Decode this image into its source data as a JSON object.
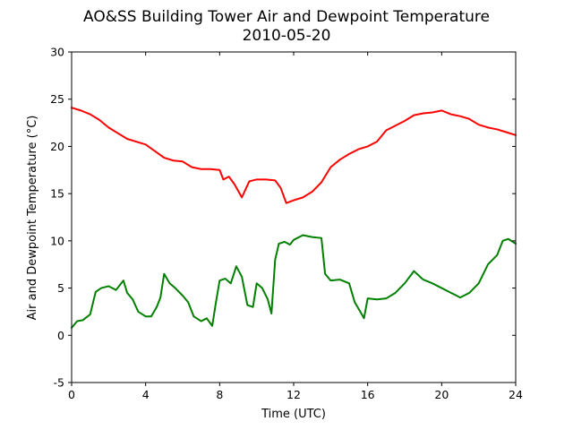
{
  "chart_data": {
    "type": "line",
    "title": "AO&SS Building Tower Air and Dewpoint Temperature",
    "subtitle": "2010-05-20",
    "xlabel": "Time (UTC)",
    "ylabel": "Air and Dewpoint Temperature (°C)",
    "xlim": [
      0,
      24
    ],
    "ylim": [
      -5,
      30
    ],
    "xticks": [
      0,
      4,
      8,
      12,
      16,
      20,
      24
    ],
    "yticks": [
      -5,
      0,
      5,
      10,
      15,
      20,
      25,
      30
    ],
    "grid": false,
    "legend": "none",
    "series": [
      {
        "color": "#ff0000",
        "x": [
          0,
          0.5,
          1,
          1.5,
          2,
          2.5,
          3,
          3.5,
          4,
          4.5,
          5,
          5.5,
          6,
          6.5,
          7,
          7.5,
          8,
          8.2,
          8.5,
          8.8,
          9.2,
          9.6,
          10,
          10.5,
          11,
          11.3,
          11.6,
          12,
          12.5,
          13,
          13.5,
          14,
          14.5,
          15,
          15.5,
          16,
          16.5,
          17,
          17.5,
          18,
          18.5,
          19,
          19.5,
          20,
          20.5,
          21,
          21.5,
          22,
          22.5,
          23,
          23.5,
          24
        ],
        "y": [
          24.1,
          23.8,
          23.4,
          22.8,
          22.0,
          21.4,
          20.8,
          20.5,
          20.2,
          19.5,
          18.8,
          18.5,
          18.4,
          17.8,
          17.6,
          17.6,
          17.5,
          16.5,
          16.8,
          16.0,
          14.6,
          16.3,
          16.5,
          16.5,
          16.4,
          15.6,
          14.0,
          14.3,
          14.6,
          15.2,
          16.2,
          17.8,
          18.6,
          19.2,
          19.7,
          20.0,
          20.5,
          21.7,
          22.2,
          22.7,
          23.3,
          23.5,
          23.6,
          23.8,
          23.4,
          23.2,
          22.9,
          22.3,
          22.0,
          21.8,
          21.5,
          21.2
        ]
      },
      {
        "color": "#008000",
        "x": [
          0,
          0.3,
          0.6,
          1.0,
          1.3,
          1.6,
          2.0,
          2.4,
          2.8,
          3.0,
          3.3,
          3.6,
          4.0,
          4.3,
          4.6,
          4.8,
          5.0,
          5.3,
          5.6,
          6.0,
          6.3,
          6.6,
          7.0,
          7.3,
          7.6,
          7.8,
          8.0,
          8.3,
          8.6,
          8.9,
          9.2,
          9.5,
          9.8,
          10.0,
          10.3,
          10.6,
          10.8,
          11.0,
          11.2,
          11.5,
          11.8,
          12.0,
          12.5,
          13.0,
          13.5,
          13.7,
          14.0,
          14.5,
          15.0,
          15.3,
          15.6,
          15.8,
          16.0,
          16.5,
          17.0,
          17.5,
          18.0,
          18.5,
          19.0,
          19.5,
          20.0,
          20.5,
          21.0,
          21.5,
          22.0,
          22.5,
          23.0,
          23.3,
          23.6,
          24.0
        ],
        "y": [
          0.8,
          1.5,
          1.6,
          2.2,
          4.6,
          5.0,
          5.2,
          4.8,
          5.8,
          4.5,
          3.8,
          2.5,
          2.0,
          2.0,
          3.0,
          4.0,
          6.5,
          5.5,
          5.0,
          4.2,
          3.5,
          2.0,
          1.5,
          1.8,
          1.0,
          3.5,
          5.8,
          6.0,
          5.5,
          7.3,
          6.2,
          3.2,
          3.0,
          5.5,
          5.0,
          3.8,
          2.3,
          8.0,
          9.7,
          9.9,
          9.6,
          10.1,
          10.6,
          10.4,
          10.3,
          6.5,
          5.8,
          5.9,
          5.5,
          3.5,
          2.5,
          1.8,
          3.9,
          3.8,
          3.9,
          4.5,
          5.5,
          6.8,
          5.9,
          5.5,
          5.0,
          4.5,
          4.0,
          4.5,
          5.5,
          7.5,
          8.5,
          10.0,
          10.2,
          9.7
        ]
      }
    ]
  }
}
